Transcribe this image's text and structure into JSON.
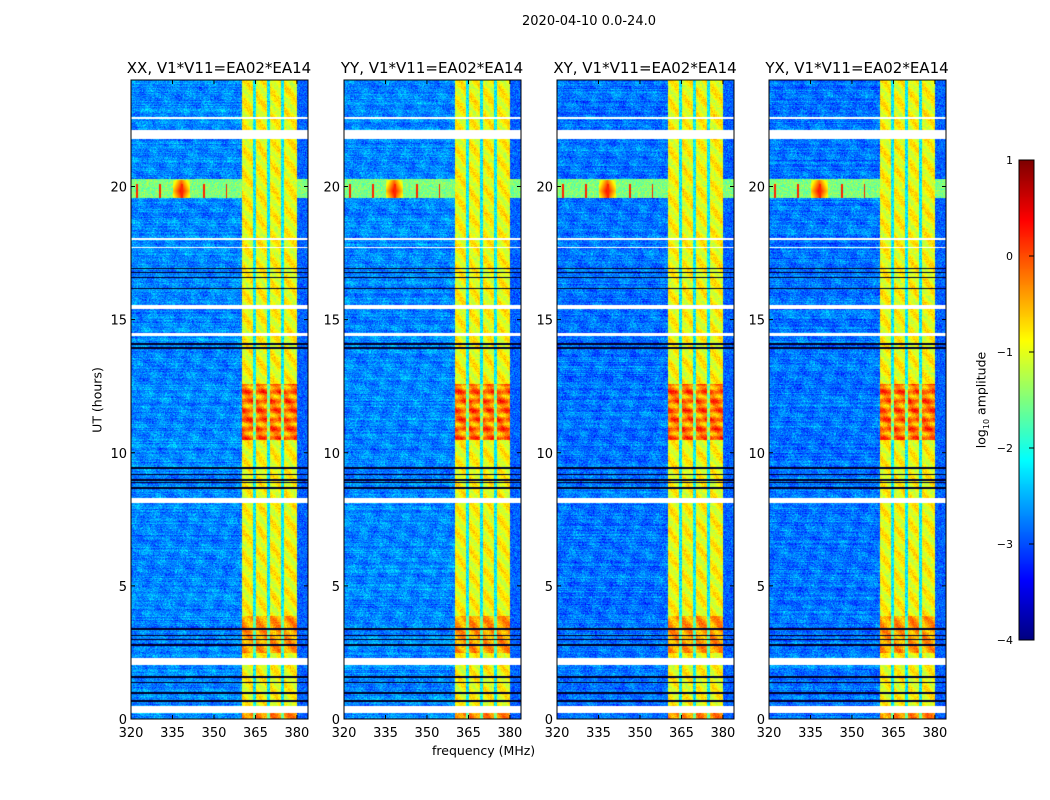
{
  "figure_title": "2020-04-10 0.0-24.0",
  "chart_data": {
    "type": "heatmap",
    "title": "2020-04-10 0.0-24.0",
    "xlabel": "frequency (MHz)",
    "ylabel": "UT (hours)",
    "xlim": [
      320,
      384
    ],
    "ylim": [
      0,
      24
    ],
    "xticks": [
      320,
      335,
      350,
      365,
      380
    ],
    "yticks": [
      0,
      5,
      10,
      15,
      20
    ],
    "colormap": "jet",
    "panels": [
      {
        "title": "XX, V1*V11=EA02*EA14"
      },
      {
        "title": "YY, V1*V11=EA02*EA14"
      },
      {
        "title": "XY, V1*V11=EA02*EA14"
      },
      {
        "title": "YX, V1*V11=EA02*EA14"
      }
    ],
    "features": {
      "background_log_amplitude": -2.6,
      "rfi_band_mhz": [
        360,
        379.7
      ],
      "rfi_band_log_amplitude": -0.9,
      "rfi_band_gaps_mhz": [
        364.6,
        369.6,
        374.6
      ],
      "strong_rfi_hours": [
        10.5,
        12.6
      ],
      "event_hours": [
        19.6,
        20.3
      ],
      "event_peak_mhz": 338,
      "flagged_hours": [
        [
          0.26,
          0.52
        ],
        [
          2.05,
          2.3
        ],
        [
          8.15,
          8.32
        ],
        [
          14.4,
          14.5
        ],
        [
          15.4,
          15.55
        ],
        [
          21.8,
          22.15
        ],
        [
          22.55,
          22.62
        ],
        [
          18.0,
          18.08
        ],
        [
          17.7,
          17.75
        ]
      ]
    },
    "colorbar": {
      "label": "log10 amplitude",
      "label_main": "log",
      "label_sub": "10",
      "label_rest": " amplitude",
      "range": [
        -4,
        1
      ],
      "ticks": [
        1,
        0,
        -1,
        -2,
        -3,
        -4
      ],
      "tick_labels": [
        "1",
        "0",
        "−1",
        "−2",
        "−3",
        "−4"
      ]
    }
  }
}
